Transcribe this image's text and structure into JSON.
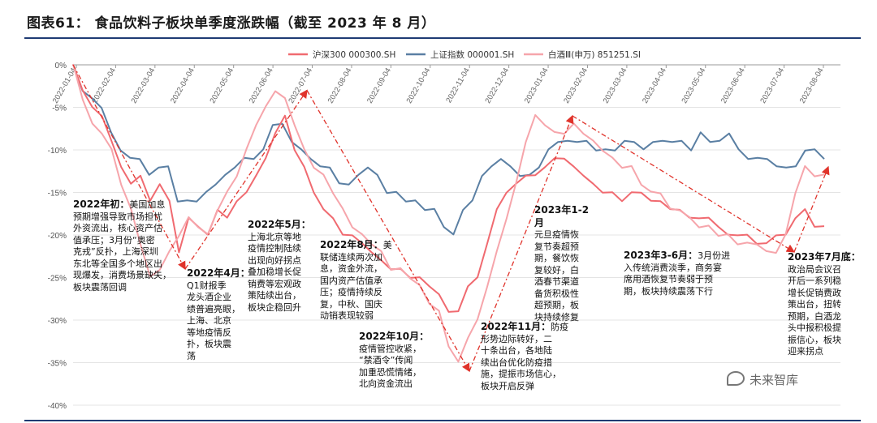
{
  "title": "图表61：   食品饮料子板块单季度涨跌幅（截至 2023 年 8 月）",
  "watermark": "未来智库",
  "chart_data": {
    "type": "line",
    "ylim": [
      -40,
      0
    ],
    "yticks": [
      "0%",
      "-5%",
      "-10%",
      "-15%",
      "-20%",
      "-25%",
      "-30%",
      "-35%",
      "-40%"
    ],
    "xticks": [
      "2022-01-04",
      "2022-02-04",
      "2022-03-04",
      "2022-04-04",
      "2022-05-04",
      "2022-06-04",
      "2022-07-04",
      "2022-08-04",
      "2022-09-04",
      "2022-10-04",
      "2022-11-04",
      "2022-12-04",
      "2023-01-04",
      "2023-02-04",
      "2023-03-04",
      "2023-04-04",
      "2023-05-04",
      "2023-06-04",
      "2023-07-04",
      "2023-08-04"
    ],
    "series": [
      {
        "name": "沪深300 000300.SH",
        "color": "#f06a70",
        "values": [
          0,
          -3,
          -5,
          -6,
          -9,
          -12,
          -14,
          -13,
          -16,
          -14,
          -16,
          -22,
          -18,
          -19,
          -20,
          -17,
          -18,
          -16,
          -15,
          -13,
          -11,
          -8,
          -6,
          -10,
          -12,
          -15,
          -17,
          -18,
          -20,
          -20,
          -21,
          -22,
          -23,
          -24,
          -24,
          -25,
          -25,
          -26,
          -27,
          -29,
          -29,
          -26,
          -25,
          -21,
          -17,
          -15,
          -14,
          -13,
          -13,
          -12,
          -11,
          -11,
          -12,
          -13,
          -14,
          -15,
          -15,
          -16,
          -15,
          -15,
          -16,
          -16,
          -17,
          -17,
          -18,
          -18,
          -18,
          -19,
          -20,
          -20,
          -20,
          -21,
          -21,
          -20,
          -20,
          -18,
          -17,
          -19,
          -19
        ]
      },
      {
        "name": "上证指数 000001.SH",
        "color": "#5a7fa3",
        "values": [
          0,
          -3,
          -4,
          -5,
          -8,
          -10,
          -11,
          -11,
          -13,
          -12,
          -12,
          -16,
          -16,
          -16,
          -15,
          -14,
          -13,
          -12,
          -11,
          -11,
          -10,
          -7,
          -7,
          -9,
          -10,
          -11,
          -12,
          -12,
          -14,
          -14,
          -13,
          -12,
          -13,
          -15,
          -15,
          -16,
          -16,
          -17,
          -17,
          -19,
          -20,
          -17,
          -16,
          -13,
          -12,
          -11,
          -12,
          -13,
          -13,
          -12,
          -10,
          -9,
          -9,
          -9,
          -9,
          -10,
          -10,
          -10,
          -9,
          -9,
          -10,
          -9,
          -9,
          -9,
          -9,
          -10,
          -8,
          -9,
          -9,
          -8,
          -10,
          -11,
          -11,
          -11,
          -12,
          -12,
          -12,
          -10,
          -10,
          -11
        ]
      },
      {
        "name": "白酒Ⅲ(申万) 851251.SI",
        "color": "#f6a5ab",
        "values": [
          0,
          -4,
          -7,
          -8,
          -10,
          -14,
          -17,
          -21,
          -25,
          -24,
          -22,
          -20,
          -18,
          -19,
          -20,
          -17,
          -15,
          -13,
          -10,
          -7,
          -5,
          -3,
          -4,
          -7,
          -10,
          -12,
          -13,
          -15,
          -17,
          -19,
          -20,
          -21,
          -22,
          -24,
          -24,
          -25,
          -26,
          -28,
          -29,
          -33,
          -35,
          -32,
          -30,
          -26,
          -22,
          -18,
          -14,
          -9,
          -6,
          -7,
          -8,
          -8,
          -7,
          -8,
          -9,
          -10,
          -11,
          -12,
          -12,
          -14,
          -15,
          -15,
          -17,
          -17,
          -18,
          -19,
          -19,
          -20,
          -20,
          -21,
          -21,
          -21,
          -22,
          -22,
          -20,
          -15,
          -12,
          -13,
          -13
        ]
      }
    ],
    "trend_points": [
      [
        0,
        0
      ],
      [
        -24,
        -24
      ],
      [
        5,
        -3
      ],
      [
        -36,
        -36
      ],
      [
        -6,
        -6
      ],
      [
        -22,
        -22
      ],
      [
        -12,
        -12
      ]
    ]
  },
  "annotations": [
    {
      "head": "2022年初：",
      "text": "美国加息\n预期增强导致市场担忧\n外资流出，核心资产估\n值承压；3月份“奥密\n克戎”反扑，上海深圳\n东北等全国多个地区出\n现爆发，消费场景缺失，\n板块震荡回调"
    },
    {
      "head": "2022年4月：",
      "text": "\nQ1财报季\n龙头酒企业\n绩普遍亮眼，\n上海、北京\n等地疫情反\n扑，板块震\n荡"
    },
    {
      "head": "2022年5月：",
      "text": "\n上海北京等地\n疫情控制陆续\n出现向好拐点\n叠加稳增长促\n销费等宏观政\n策陆续出台，\n板块企稳回升"
    },
    {
      "head": "2022年8月：",
      "text": "美\n联储连续两次加\n息，资金外流，\n国内资产估值承\n压；疫情持续反\n复，中秋、国庆\n动销表现较弱"
    },
    {
      "head": "2022年10月：",
      "text": "\n疫情管控收紧，\n“禁酒令”传闻\n加重恐慌情绪，\n北向资金流出"
    },
    {
      "head": "2022年11月：",
      "text": "防疫\n形势边际转好，二\n十条出台，各地陆\n续出台优化防疫措\n施，提振市场信心，\n板块开启反弹"
    },
    {
      "head": "2023年1-2月",
      "text": "\n元旦疫情恢\n复节奏超预\n期，餐饮恢\n复较好，白\n酒春节渠道\n备货积极性\n超预期，板\n块持续修复"
    },
    {
      "head": "2023年3-6月：",
      "text": "3月份进\n入传统消费淡季，商务宴\n席用酒恢复节奏弱于预\n期，板块持续震荡下行"
    },
    {
      "head": "2023年7月底：",
      "text": "\n政治局会议召\n开后一系列稳\n增长促销费政\n策出台，扭转\n预期，白酒龙\n头中报积极提\n振信心，板块\n迎来拐点"
    }
  ]
}
